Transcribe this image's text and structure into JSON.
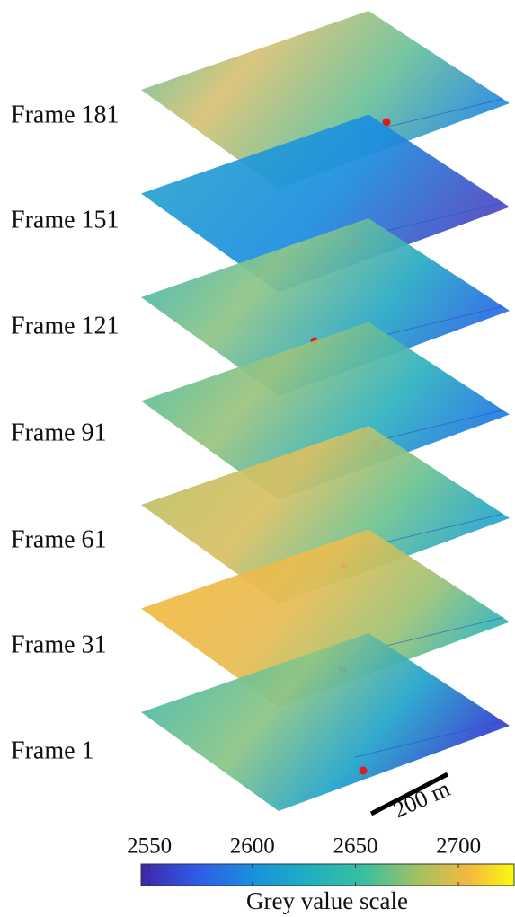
{
  "frames": [
    {
      "label": "Frame 181"
    },
    {
      "label": "Frame 151"
    },
    {
      "label": "Frame 121"
    },
    {
      "label": "Frame 91"
    },
    {
      "label": "Frame 61"
    },
    {
      "label": "Frame 31"
    },
    {
      "label": "Frame 1"
    }
  ],
  "scale_bar": "200 m",
  "colorbar": {
    "label": "Grey value scale",
    "lim": [
      2546,
      2727
    ],
    "ticks": [
      2550,
      2600,
      2650,
      2700
    ]
  }
}
